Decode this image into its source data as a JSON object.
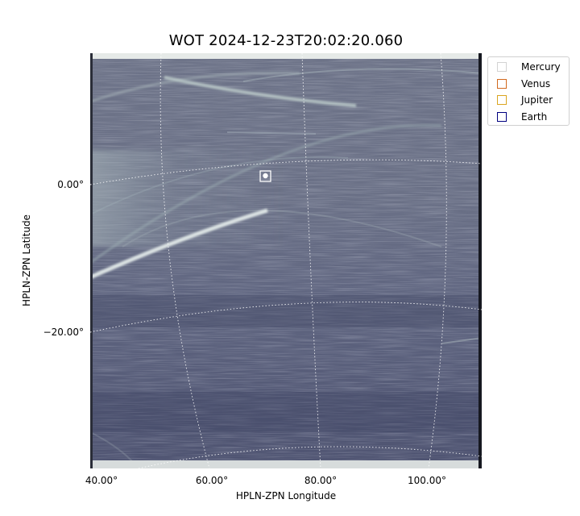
{
  "title": "WOT 2024-12-23T20:02:20.060",
  "axes": {
    "xlabel": "HPLN-ZPN Longitude",
    "ylabel": "HPLN-ZPN Latitude",
    "xticks": [
      "40.00°",
      "60.00°",
      "80.00°",
      "100.00°"
    ],
    "yticks": [
      "0.00°",
      "−20.00°"
    ]
  },
  "legend": {
    "items": [
      {
        "label": "Mercury",
        "color": "#d3d3d3"
      },
      {
        "label": "Venus",
        "color": "#d2691e"
      },
      {
        "label": "Jupiter",
        "color": "#daa520"
      },
      {
        "label": "Earth",
        "color": "#000080"
      }
    ]
  },
  "image": {
    "colormap": "bone",
    "grid": true,
    "marker_color": "#ffffff"
  }
}
